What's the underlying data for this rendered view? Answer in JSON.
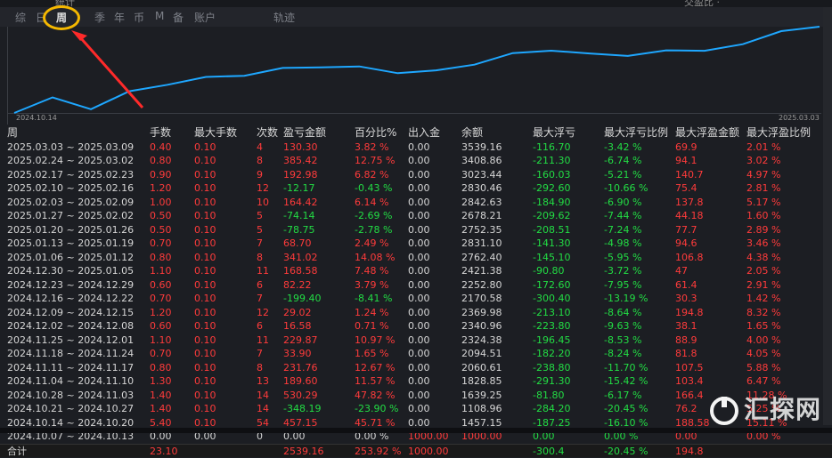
{
  "top": {
    "ghost_left": "统计",
    "ghost_right": "交盈比 ·"
  },
  "tabs": [
    {
      "label": "综",
      "left": 17
    },
    {
      "label": "日",
      "left": 40
    },
    {
      "label": "周",
      "left": 63,
      "active": true
    },
    {
      "label": "季",
      "left": 106
    },
    {
      "label": "年",
      "left": 128
    },
    {
      "label": "币",
      "left": 150
    },
    {
      "label": "M",
      "left": 174
    },
    {
      "label": "备",
      "left": 194
    },
    {
      "label": "账户",
      "left": 218
    },
    {
      "label": "轨迹",
      "left": 307
    }
  ],
  "chart": {
    "start_date": "2024.10.14",
    "end_date": "2025.03.03",
    "line_color": "#1ea7ff",
    "balance_series": [
      1000.0,
      1457.15,
      1108.96,
      1639.25,
      1828.85,
      2060.61,
      2094.51,
      2324.38,
      2340.96,
      2369.98,
      2170.58,
      2252.8,
      2421.38,
      2762.4,
      2831.1,
      2752.35,
      2678.21,
      2842.63,
      2830.46,
      3023.44,
      3408.86,
      3539.16
    ]
  },
  "headers": [
    "周",
    "手数",
    "最大手数",
    "次数",
    "盈亏金额",
    "百分比%",
    "出入金",
    "余额",
    "最大浮亏",
    "最大浮亏比例",
    "最大浮盈金额",
    "最大浮盈比例"
  ],
  "rows": [
    [
      "2025.03.03 ~ 2025.03.09",
      "0.40",
      "0.10",
      "4",
      "130.30",
      "3.82 %",
      "0.00",
      "3539.16",
      "-116.70",
      "-3.42 %",
      "69.9",
      "2.01 %"
    ],
    [
      "2025.02.24 ~ 2025.03.02",
      "0.80",
      "0.10",
      "8",
      "385.42",
      "12.75 %",
      "0.00",
      "3408.86",
      "-211.30",
      "-6.74 %",
      "94.1",
      "3.02 %"
    ],
    [
      "2025.02.17 ~ 2025.02.23",
      "0.90",
      "0.10",
      "9",
      "192.98",
      "6.82 %",
      "0.00",
      "3023.44",
      "-160.03",
      "-5.21 %",
      "140.7",
      "4.97 %"
    ],
    [
      "2025.02.10 ~ 2025.02.16",
      "1.20",
      "0.10",
      "12",
      "-12.17",
      "-0.43 %",
      "0.00",
      "2830.46",
      "-292.60",
      "-10.66 %",
      "75.4",
      "2.81 %"
    ],
    [
      "2025.02.03 ~ 2025.02.09",
      "1.00",
      "0.10",
      "10",
      "164.42",
      "6.14 %",
      "0.00",
      "2842.63",
      "-184.90",
      "-6.90 %",
      "137.8",
      "5.17 %"
    ],
    [
      "2025.01.27 ~ 2025.02.02",
      "0.50",
      "0.10",
      "5",
      "-74.14",
      "-2.69 %",
      "0.00",
      "2678.21",
      "-209.62",
      "-7.44 %",
      "44.18",
      "1.60 %"
    ],
    [
      "2025.01.20 ~ 2025.01.26",
      "0.50",
      "0.10",
      "5",
      "-78.75",
      "-2.78 %",
      "0.00",
      "2752.35",
      "-208.51",
      "-7.24 %",
      "77.7",
      "2.89 %"
    ],
    [
      "2025.01.13 ~ 2025.01.19",
      "0.70",
      "0.10",
      "7",
      "68.70",
      "2.49 %",
      "0.00",
      "2831.10",
      "-141.30",
      "-4.98 %",
      "94.6",
      "3.46 %"
    ],
    [
      "2025.01.06 ~ 2025.01.12",
      "0.80",
      "0.10",
      "8",
      "341.02",
      "14.08 %",
      "0.00",
      "2762.40",
      "-145.10",
      "-5.95 %",
      "106.8",
      "4.38 %"
    ],
    [
      "2024.12.30 ~ 2025.01.05",
      "1.10",
      "0.10",
      "11",
      "168.58",
      "7.48 %",
      "0.00",
      "2421.38",
      "-90.80",
      "-3.72 %",
      "47",
      "2.05 %"
    ],
    [
      "2024.12.23 ~ 2024.12.29",
      "0.60",
      "0.10",
      "6",
      "82.22",
      "3.79 %",
      "0.00",
      "2252.80",
      "-172.60",
      "-7.95 %",
      "61.4",
      "2.91 %"
    ],
    [
      "2024.12.16 ~ 2024.12.22",
      "0.70",
      "0.10",
      "7",
      "-199.40",
      "-8.41 %",
      "0.00",
      "2170.58",
      "-300.40",
      "-13.19 %",
      "30.3",
      "1.42 %"
    ],
    [
      "2024.12.09 ~ 2024.12.15",
      "1.20",
      "0.10",
      "12",
      "29.02",
      "1.24 %",
      "0.00",
      "2369.98",
      "-213.10",
      "-8.64 %",
      "194.8",
      "8.32 %"
    ],
    [
      "2024.12.02 ~ 2024.12.08",
      "0.60",
      "0.10",
      "6",
      "16.58",
      "0.71 %",
      "0.00",
      "2340.96",
      "-223.80",
      "-9.63 %",
      "38.1",
      "1.65 %"
    ],
    [
      "2024.11.25 ~ 2024.12.01",
      "1.10",
      "0.10",
      "11",
      "229.87",
      "10.97 %",
      "0.00",
      "2324.38",
      "-196.45",
      "-8.53 %",
      "88.9",
      "4.00 %"
    ],
    [
      "2024.11.18 ~ 2024.11.24",
      "0.70",
      "0.10",
      "7",
      "33.90",
      "1.65 %",
      "0.00",
      "2094.51",
      "-182.20",
      "-8.24 %",
      "81.8",
      "4.05 %"
    ],
    [
      "2024.11.11 ~ 2024.11.17",
      "0.80",
      "0.10",
      "8",
      "231.76",
      "12.67 %",
      "0.00",
      "2060.61",
      "-238.80",
      "-11.70 %",
      "107.5",
      "5.88 %"
    ],
    [
      "2024.11.04 ~ 2024.11.10",
      "1.30",
      "0.10",
      "13",
      "189.60",
      "11.57 %",
      "0.00",
      "1828.85",
      "-291.30",
      "-15.42 %",
      "103.4",
      "6.47 %"
    ],
    [
      "2024.10.28 ~ 2024.11.03",
      "1.40",
      "0.10",
      "14",
      "530.29",
      "47.82 %",
      "0.00",
      "1639.25",
      "-81.80",
      "-6.17 %",
      "166.4",
      "11.28 %"
    ],
    [
      "2024.10.21 ~ 2024.10.27",
      "1.40",
      "0.10",
      "14",
      "-348.19",
      "-23.90 %",
      "0.00",
      "1108.96",
      "-284.20",
      "-20.45 %",
      "76.2",
      "5.25 %"
    ],
    [
      "2024.10.14 ~ 2024.10.20",
      "5.40",
      "0.10",
      "54",
      "457.15",
      "45.71 %",
      "0.00",
      "1457.15",
      "-187.25",
      "-16.10 %",
      "188.58",
      "15.11 %"
    ],
    [
      "2024.10.07 ~ 2024.10.13",
      "0.00",
      "0.00",
      "0",
      "0.00",
      "0.00 %",
      "1000.00",
      "1000.00",
      "0.00",
      "0.00 %",
      "0.00",
      "0.00 %"
    ]
  ],
  "total": [
    "合计",
    "23.10",
    "",
    "",
    "2539.16",
    "253.92 %",
    "1000.00",
    "",
    "-300.4",
    "-20.45 %",
    "194.8",
    ""
  ],
  "watermark": "汇探网"
}
